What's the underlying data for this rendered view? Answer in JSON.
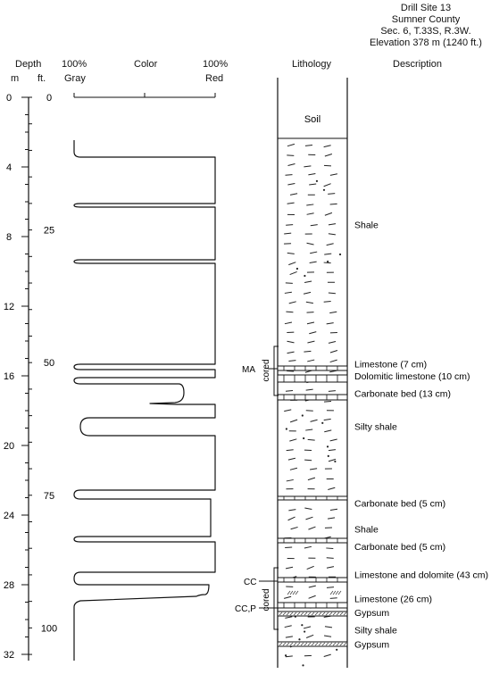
{
  "site": {
    "lines": [
      "Drill Site 13",
      "Sumner County",
      "Sec. 6, T.33S, R.3W.",
      "Elevation 378 m (1240 ft.)"
    ]
  },
  "headers": {
    "depth": "Depth",
    "m": "m",
    "ft": "ft.",
    "gray_pct": "100%",
    "gray": "Gray",
    "color": "Color",
    "red_pct": "100%",
    "red": "Red",
    "lithology": "Lithology",
    "description": "Description"
  },
  "depth_axis": {
    "m_ticks": [
      "0",
      "4",
      "8",
      "12",
      "16",
      "20",
      "24",
      "28",
      "32"
    ],
    "ft_ticks": [
      "0",
      "25",
      "50",
      "75",
      "100"
    ]
  },
  "soil_label": "Soil",
  "core_labels": {
    "ma": "MA",
    "cc": "CC",
    "ccp": "CC,P",
    "cored": "cored"
  },
  "descriptions": [
    {
      "text": "Shale",
      "depth_m": 7.3
    },
    {
      "text": "Limestone (7 cm)",
      "depth_m": 15.3
    },
    {
      "text": "Dolomitic limestone (10 cm)",
      "depth_m": 16.0
    },
    {
      "text": "Carbonate bed (13 cm)",
      "depth_m": 17.0
    },
    {
      "text": "Silty shale",
      "depth_m": 18.9
    },
    {
      "text": "Carbonate bed (5 cm)",
      "depth_m": 23.3
    },
    {
      "text": "Shale",
      "depth_m": 24.8
    },
    {
      "text": "Carbonate bed (5 cm)",
      "depth_m": 25.8
    },
    {
      "text": "Limestone and dolomite (43 cm)",
      "depth_m": 27.4
    },
    {
      "text": "Limestone (26 cm)",
      "depth_m": 28.8
    },
    {
      "text": "Gypsum",
      "depth_m": 29.6
    },
    {
      "text": "Silty shale",
      "depth_m": 30.6
    },
    {
      "text": "Gypsum",
      "depth_m": 31.4
    }
  ]
}
